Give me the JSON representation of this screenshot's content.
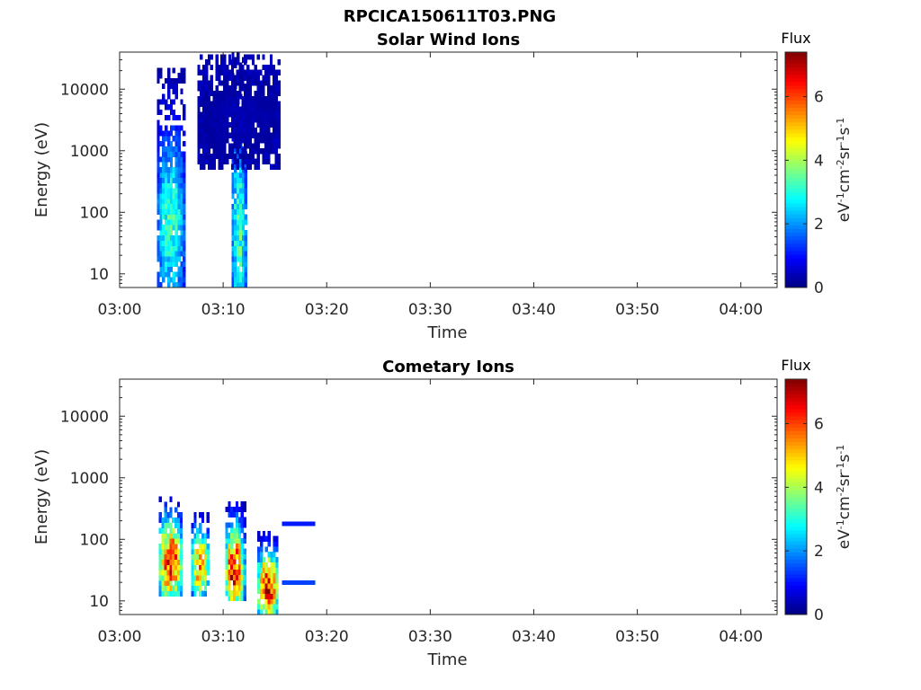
{
  "figure": {
    "suptitle": "RPCICA150611T03.PNG"
  },
  "colormap": [
    "#00007f",
    "#0000ff",
    "#007fff",
    "#00ffff",
    "#7fff7f",
    "#ffff00",
    "#ff7f00",
    "#ff0000",
    "#7f0000"
  ],
  "chart_data": [
    {
      "type": "heatmap",
      "title": "Solar Wind Ions",
      "xlabel": "Time",
      "ylabel": "Energy (eV)",
      "x_ticks": [
        "03:00",
        "03:10",
        "03:20",
        "03:30",
        "03:40",
        "03:50",
        "04:00"
      ],
      "x_range_minutes": [
        0,
        63.5
      ],
      "y_scale": "log",
      "y_ticks": [
        10,
        100,
        1000,
        10000
      ],
      "y_tick_labels": [
        "10",
        "100",
        "1000",
        "10000"
      ],
      "y_range": [
        6,
        40000
      ],
      "colorbar": {
        "label": "Flux",
        "unit": "eV-1cm-2sr-1s-1",
        "range": [
          0,
          7.4
        ],
        "ticks": [
          0,
          2,
          4,
          6
        ],
        "tick_labels": [
          "0",
          "2",
          "4",
          "6"
        ]
      },
      "bursts": [
        {
          "t_start": 3.6,
          "t_end": 6.3,
          "e_min": 6,
          "e_max": 20000,
          "peak_flux": 3.4,
          "peak_energy": 60
        },
        {
          "t_start": 10.8,
          "t_end": 12.3,
          "e_min": 6,
          "e_max": 40000,
          "peak_flux": 3.5,
          "peak_energy": 45
        },
        {
          "t_start": 7.5,
          "t_end": 15.5,
          "e_min": 500,
          "e_max": 36000,
          "peak_flux": 0.4,
          "peak_energy": 3000
        }
      ]
    },
    {
      "type": "heatmap",
      "title": "Cometary Ions",
      "xlabel": "Time",
      "ylabel": "Energy (eV)",
      "x_ticks": [
        "03:00",
        "03:10",
        "03:20",
        "03:30",
        "03:40",
        "03:50",
        "04:00"
      ],
      "x_range_minutes": [
        0,
        63.5
      ],
      "y_scale": "log",
      "y_ticks": [
        10,
        100,
        1000,
        10000
      ],
      "y_tick_labels": [
        "10",
        "100",
        "1000",
        "10000"
      ],
      "y_range": [
        6,
        40000
      ],
      "colorbar": {
        "label": "Flux",
        "unit": "eV-1cm-2sr-1s-1",
        "range": [
          0,
          7.4
        ],
        "ticks": [
          0,
          2,
          4,
          6
        ],
        "tick_labels": [
          "0",
          "2",
          "4",
          "6"
        ]
      },
      "bursts": [
        {
          "t_start": 3.8,
          "t_end": 6.0,
          "e_min": 12,
          "e_max": 450,
          "peak_flux": 6.8,
          "peak_energy": 40
        },
        {
          "t_start": 6.9,
          "t_end": 8.6,
          "e_min": 12,
          "e_max": 250,
          "peak_flux": 5.8,
          "peak_energy": 35
        },
        {
          "t_start": 10.2,
          "t_end": 12.0,
          "e_min": 10,
          "e_max": 400,
          "peak_flux": 7.0,
          "peak_energy": 30
        },
        {
          "t_start": 13.3,
          "t_end": 15.3,
          "e_min": 6,
          "e_max": 120,
          "peak_flux": 6.9,
          "peak_energy": 15
        }
      ],
      "bands": [
        {
          "t_start": 15.7,
          "t_end": 18.9,
          "energy": 180,
          "flux": 1.1
        },
        {
          "t_start": 15.7,
          "t_end": 18.9,
          "energy": 20,
          "flux": 1.4
        }
      ]
    }
  ]
}
